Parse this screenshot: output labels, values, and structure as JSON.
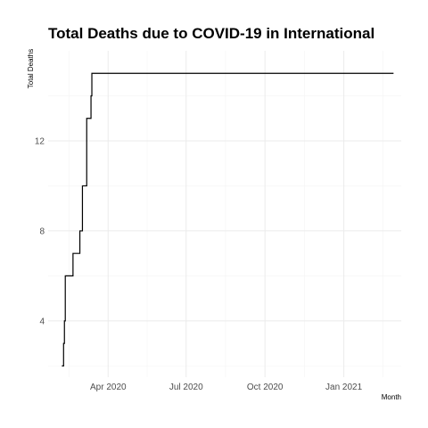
{
  "chart_data": {
    "type": "line",
    "line_shape": "step",
    "title": "Total Deaths due to COVID-19 in International",
    "xlabel": "Month",
    "ylabel": "Total Deaths",
    "x_type": "date",
    "xlim": [
      "2020-01-22",
      "2021-03-09"
    ],
    "ylim": [
      1.5,
      16
    ],
    "x_ticks": [
      {
        "date": "2020-04-01",
        "label": "Apr 2020"
      },
      {
        "date": "2020-07-01",
        "label": "Jul 2020"
      },
      {
        "date": "2020-10-01",
        "label": "Oct 2020"
      },
      {
        "date": "2021-01-01",
        "label": "Jan 2021"
      }
    ],
    "y_ticks": [
      4,
      8,
      12
    ],
    "grid": true,
    "legend": "none",
    "colors": {
      "line": "#000000",
      "grid": "#ebebeb"
    },
    "series": [
      {
        "x": [
          "2020-02-07",
          "2020-02-09",
          "2020-02-10",
          "2020-02-11",
          "2020-02-20",
          "2020-02-28",
          "2020-03-02",
          "2020-03-05",
          "2020-03-07",
          "2020-03-10",
          "2020-03-12",
          "2020-03-13",
          "2020-03-15"
        ],
        "values": [
          2,
          3,
          4,
          6,
          7,
          8,
          10,
          10,
          13,
          13,
          14,
          15,
          15
        ]
      }
    ],
    "x_end": "2021-02-28"
  }
}
